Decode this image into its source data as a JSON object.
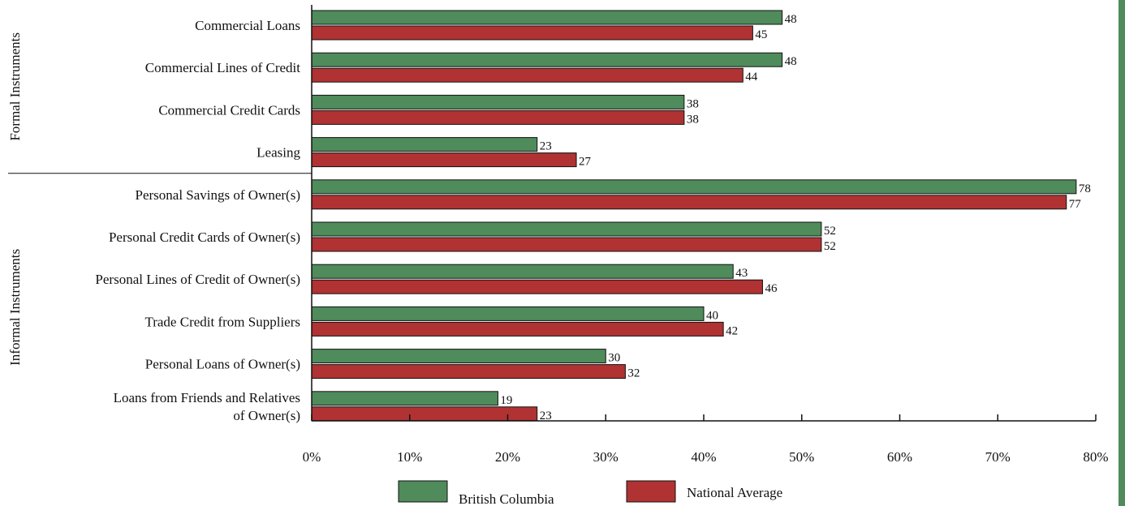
{
  "chart_data": {
    "type": "bar",
    "orientation": "horizontal",
    "categories": [
      "Commercial Loans",
      "Commercial Lines of Credit",
      "Commercial Credit Cards",
      "Leasing",
      "Personal Savings of Owner(s)",
      "Personal Credit Cards of Owner(s)",
      "Personal Lines of Credit of Owner(s)",
      "Trade Credit from Suppliers",
      "Personal Loans of Owner(s)",
      "Loans from Friends and Relatives of Owner(s)"
    ],
    "category_label_lines": [
      [
        "Commercial Loans"
      ],
      [
        "Commercial Lines of Credit"
      ],
      [
        "Commercial Credit Cards"
      ],
      [
        "Leasing"
      ],
      [
        "Personal Savings of Owner(s)"
      ],
      [
        "Personal Credit Cards of Owner(s)"
      ],
      [
        "Personal Lines of Credit of Owner(s)"
      ],
      [
        "Trade Credit from Suppliers"
      ],
      [
        "Personal Loans of Owner(s)"
      ],
      [
        "Loans from Friends and Relatives",
        "of Owner(s)"
      ]
    ],
    "groups": [
      {
        "name": "Formal Instruments",
        "start": 0,
        "end": 3
      },
      {
        "name": "Informal Instruments",
        "start": 4,
        "end": 9
      }
    ],
    "series": [
      {
        "name": "British Columbia",
        "color": "#4f8b5b",
        "values": [
          48,
          48,
          38,
          23,
          78,
          52,
          43,
          40,
          30,
          19
        ]
      },
      {
        "name": "National Average",
        "color": "#b03232",
        "values": [
          45,
          44,
          38,
          27,
          77,
          52,
          46,
          42,
          32,
          23
        ]
      }
    ],
    "xlim": [
      0,
      80
    ],
    "x_ticks": [
      0,
      10,
      20,
      30,
      40,
      50,
      60,
      70,
      80
    ],
    "x_tick_labels": [
      "0%",
      "10%",
      "20%",
      "30%",
      "40%",
      "50%",
      "60%",
      "70%",
      "80%"
    ],
    "data_labels": true,
    "grid": false,
    "legend_position": "bottom"
  },
  "accent_color": "#4f8b5b"
}
